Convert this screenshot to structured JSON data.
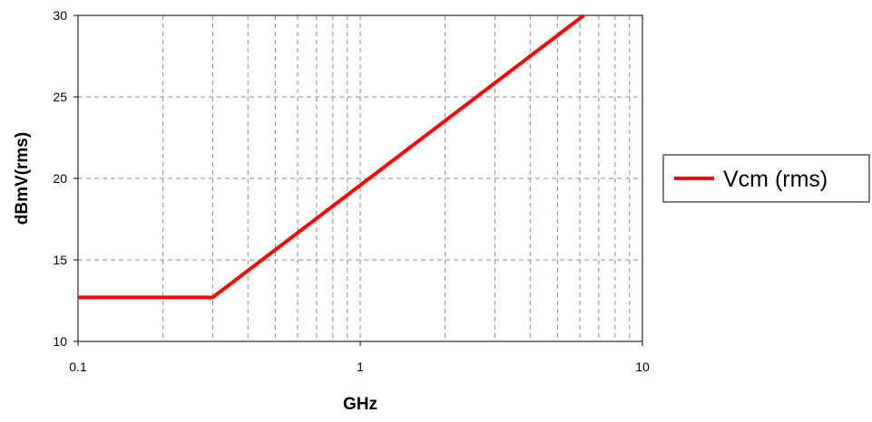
{
  "chart_data": {
    "type": "line",
    "x_scale": "log",
    "y_scale": "linear",
    "xlim": [
      0.1,
      10
    ],
    "ylim": [
      10,
      30
    ],
    "xlabel": "GHz",
    "ylabel": "dBmV(rms)",
    "x_ticks": [
      "0.1",
      "1",
      "10"
    ],
    "y_ticks": [
      "10",
      "15",
      "20",
      "25",
      "30"
    ],
    "grid": true,
    "legend_position": "right",
    "series": [
      {
        "name": "Vcm (rms)",
        "color": "#ff0000",
        "x": [
          0.1,
          0.3,
          6.2
        ],
        "y": [
          12.7,
          12.7,
          30
        ]
      }
    ]
  }
}
